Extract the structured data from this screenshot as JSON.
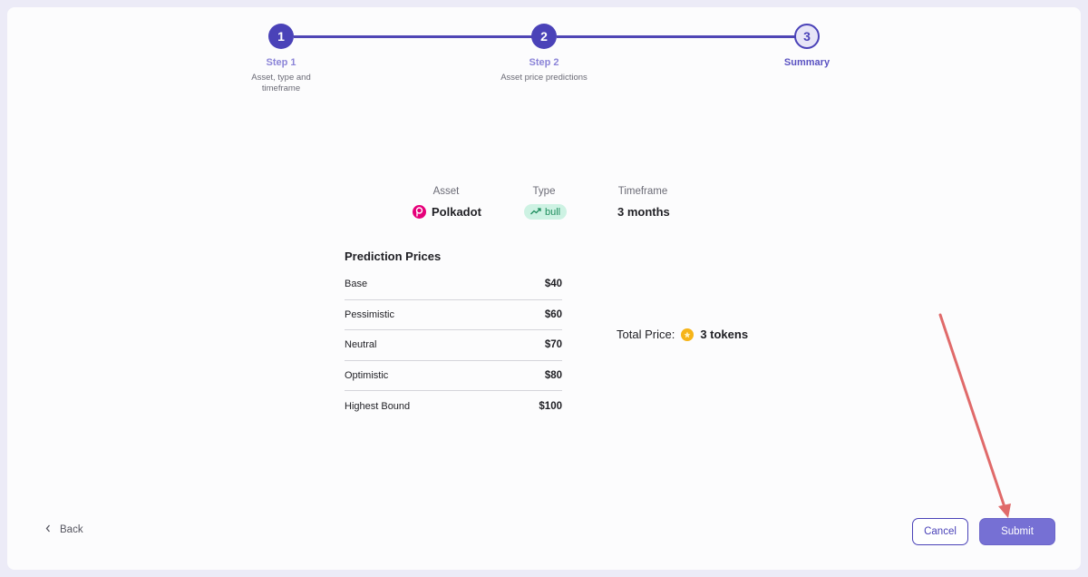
{
  "stepper": {
    "steps": [
      {
        "number": "1",
        "title": "Step 1",
        "description": "Asset, type and timeframe",
        "state": "done"
      },
      {
        "number": "2",
        "title": "Step 2",
        "description": "Asset price predictions",
        "state": "done"
      },
      {
        "number": "3",
        "title": "Summary",
        "description": "",
        "state": "current"
      }
    ]
  },
  "summary": {
    "asset_label": "Asset",
    "asset_value": "Polkadot",
    "asset_icon": "polkadot-icon",
    "type_label": "Type",
    "type_value": "bull",
    "type_icon": "trending-up-icon",
    "timeframe_label": "Timeframe",
    "timeframe_value": "3 months"
  },
  "predictions": {
    "title": "Prediction Prices",
    "rows": [
      {
        "label": "Base",
        "value": "$40"
      },
      {
        "label": "Pessimistic",
        "value": "$60"
      },
      {
        "label": "Neutral",
        "value": "$70"
      },
      {
        "label": "Optimistic",
        "value": "$80"
      },
      {
        "label": "Highest Bound",
        "value": "$100"
      }
    ]
  },
  "total": {
    "label": "Total Price:",
    "value": "3 tokens",
    "icon": "coin-icon"
  },
  "footer": {
    "back_label": "Back",
    "cancel_label": "Cancel",
    "submit_label": "Submit"
  },
  "colors": {
    "primary": "#4a42b8",
    "submit_bg": "#7670d4",
    "bull_bg": "#cdf2e3",
    "bull_text": "#1f8e5e",
    "polkadot": "#e6007a",
    "annotation_arrow": "#e06a6a"
  }
}
